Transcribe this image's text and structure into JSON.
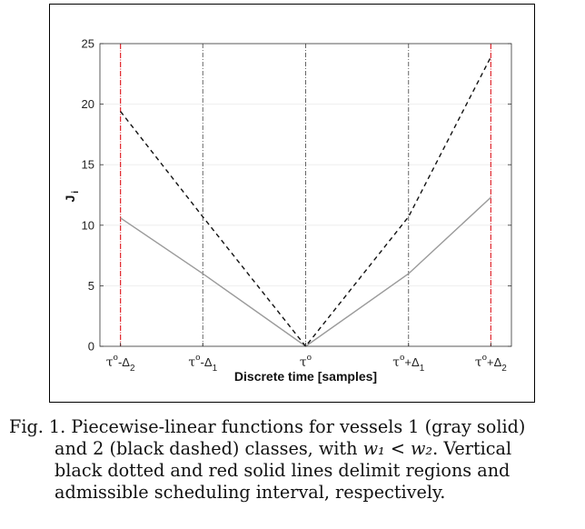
{
  "chart_data": {
    "type": "line",
    "title": "",
    "xlabel": "Discrete time [samples]",
    "ylabel": "J",
    "ylabel_sub": "i",
    "ylim": [
      0,
      25
    ],
    "yticks": [
      0,
      5,
      10,
      15,
      20,
      25
    ],
    "xlim": [
      -2.0,
      2.0
    ],
    "xticks": [
      {
        "x": -1.8,
        "base": "τ",
        "sup": "o",
        "op": "-Δ",
        "sub": "2"
      },
      {
        "x": -1.0,
        "base": "τ",
        "sup": "o",
        "op": "-Δ",
        "sub": "1"
      },
      {
        "x": 0.0,
        "base": "τ",
        "sup": "o",
        "op": "",
        "sub": ""
      },
      {
        "x": 1.0,
        "base": "τ",
        "sup": "o",
        "op": "+Δ",
        "sub": "1"
      },
      {
        "x": 1.8,
        "base": "τ",
        "sup": "o",
        "op": "+Δ",
        "sub": "2"
      }
    ],
    "vertical_lines": [
      {
        "x": -1.0,
        "style": "dotted",
        "color": "#555555"
      },
      {
        "x": 0.0,
        "style": "dotted",
        "color": "#555555"
      },
      {
        "x": 1.0,
        "style": "dotted",
        "color": "#555555"
      },
      {
        "x": -1.8,
        "style": "solid",
        "color": "#e0242b"
      },
      {
        "x": 1.8,
        "style": "solid",
        "color": "#e0242b"
      }
    ],
    "series": [
      {
        "style": "solid",
        "color": "#9a9a9a",
        "x": [
          -1.8,
          -1.0,
          0.0,
          1.0,
          1.8
        ],
        "y": [
          10.6,
          6.0,
          0.0,
          6.0,
          12.3
        ]
      },
      {
        "style": "dashed",
        "color": "#111111",
        "x": [
          -1.8,
          -1.0,
          0.0,
          1.0,
          1.8
        ],
        "y": [
          19.4,
          10.7,
          0.0,
          10.7,
          23.9
        ]
      }
    ],
    "grid": true
  },
  "caption": {
    "line1": "Fig. 1. Piecewise-linear functions for vessels 1 (gray solid)",
    "line2_a": "and 2 (black dashed) classes, with ",
    "line2_math": "w₁ < w₂",
    "line2_b": ". Vertical",
    "line3": "black dotted and red solid lines delimit regions and",
    "line4": "admissible scheduling interval, respectively."
  }
}
